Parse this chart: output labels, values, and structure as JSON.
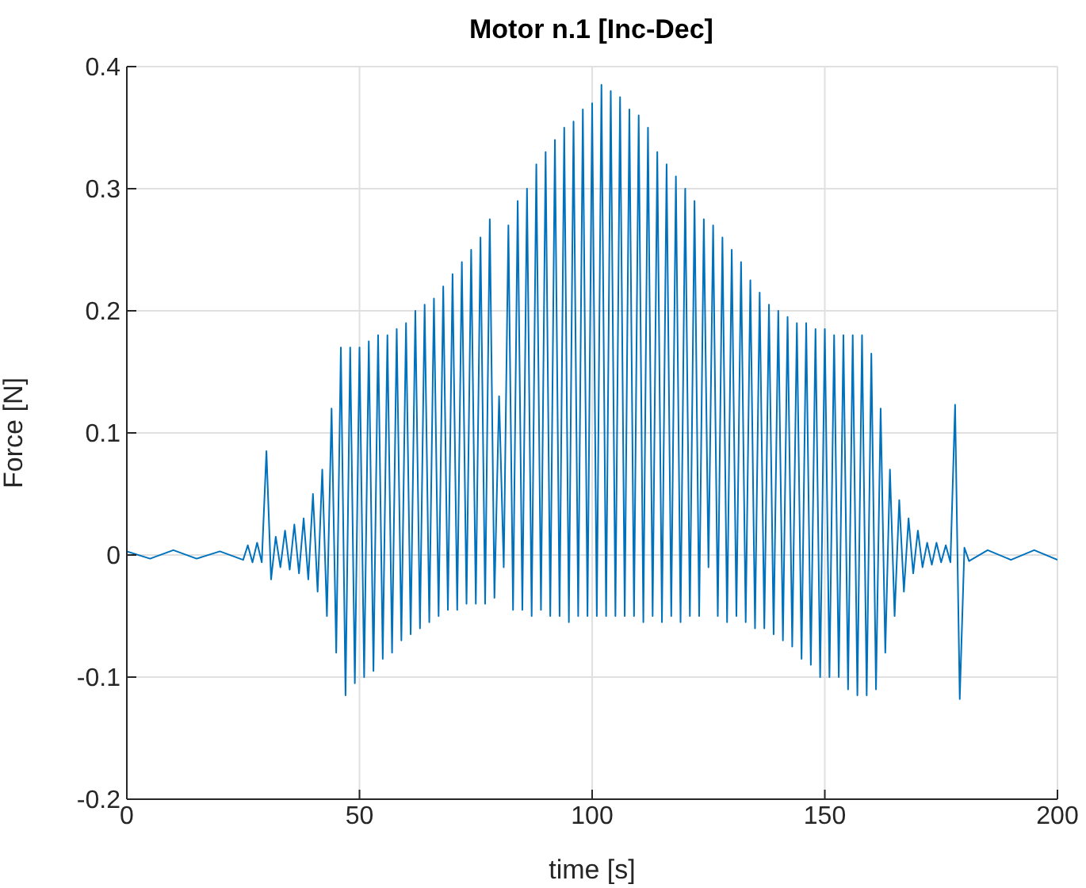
{
  "chart_data": {
    "type": "line",
    "title": "Motor n.1 [Inc-Dec]",
    "xlabel": "time [s]",
    "ylabel": "Force [N]",
    "xlim": [
      0,
      200
    ],
    "xticks": [
      0,
      50,
      100,
      150,
      200
    ],
    "ylim": [
      -0.2,
      0.4
    ],
    "yticks": [
      -0.2,
      -0.1,
      0,
      0.1,
      0.2,
      0.3,
      0.4
    ],
    "grid": true,
    "marker": "none",
    "line_style": "solid",
    "series": [
      {
        "color": "#0072bd",
        "x": [
          0,
          5,
          10,
          15,
          20,
          25,
          26,
          27,
          28,
          29,
          30,
          31,
          32,
          33,
          34,
          35,
          36,
          37,
          38,
          39,
          40,
          41,
          42,
          43,
          44,
          45,
          46,
          47,
          48,
          49,
          50,
          51,
          52,
          53,
          54,
          55,
          56,
          57,
          58,
          59,
          60,
          61,
          62,
          63,
          64,
          65,
          66,
          67,
          68,
          69,
          70,
          71,
          72,
          73,
          74,
          75,
          76,
          77,
          78,
          79,
          80,
          81,
          82,
          83,
          84,
          85,
          86,
          87,
          88,
          89,
          90,
          91,
          92,
          93,
          94,
          95,
          96,
          97,
          98,
          99,
          100,
          101,
          102,
          103,
          104,
          105,
          106,
          107,
          108,
          109,
          110,
          111,
          112,
          113,
          114,
          115,
          116,
          117,
          118,
          119,
          120,
          121,
          122,
          123,
          124,
          125,
          126,
          127,
          128,
          129,
          130,
          131,
          132,
          133,
          134,
          135,
          136,
          137,
          138,
          139,
          140,
          141,
          142,
          143,
          144,
          145,
          146,
          147,
          148,
          149,
          150,
          151,
          152,
          153,
          154,
          155,
          156,
          157,
          158,
          159,
          160,
          161,
          162,
          163,
          164,
          165,
          166,
          167,
          168,
          169,
          170,
          171,
          172,
          173,
          174,
          175,
          176,
          177,
          178,
          179,
          180,
          181,
          185,
          190,
          195,
          200
        ],
        "values": [
          0.003,
          -0.003,
          0.004,
          -0.003,
          0.003,
          -0.004,
          0.008,
          -0.006,
          0.01,
          -0.006,
          0.085,
          -0.02,
          0.015,
          -0.01,
          0.02,
          -0.012,
          0.025,
          -0.015,
          0.03,
          -0.02,
          0.05,
          -0.03,
          0.07,
          -0.05,
          0.12,
          -0.08,
          0.17,
          -0.115,
          0.17,
          -0.105,
          0.17,
          -0.1,
          0.175,
          -0.095,
          0.18,
          -0.085,
          0.18,
          -0.08,
          0.185,
          -0.07,
          0.19,
          -0.065,
          0.2,
          -0.06,
          0.205,
          -0.055,
          0.21,
          -0.05,
          0.22,
          -0.045,
          0.23,
          -0.045,
          0.24,
          -0.04,
          0.25,
          -0.04,
          0.26,
          -0.04,
          0.275,
          -0.035,
          0.13,
          -0.01,
          0.27,
          -0.045,
          0.29,
          -0.045,
          0.3,
          -0.05,
          0.32,
          -0.045,
          0.33,
          -0.05,
          0.34,
          -0.05,
          0.35,
          -0.055,
          0.355,
          -0.05,
          0.365,
          -0.05,
          0.37,
          -0.05,
          0.385,
          -0.05,
          0.38,
          -0.05,
          0.375,
          -0.05,
          0.365,
          -0.05,
          0.36,
          -0.055,
          0.35,
          -0.05,
          0.33,
          -0.055,
          0.32,
          -0.05,
          0.31,
          -0.055,
          0.3,
          -0.05,
          0.29,
          -0.05,
          0.275,
          -0.01,
          0.27,
          -0.05,
          0.26,
          -0.055,
          0.25,
          -0.05,
          0.24,
          -0.055,
          0.225,
          -0.06,
          0.215,
          -0.06,
          0.205,
          -0.065,
          0.2,
          -0.07,
          0.195,
          -0.075,
          0.19,
          -0.085,
          0.19,
          -0.09,
          0.185,
          -0.1,
          0.185,
          -0.1,
          0.18,
          -0.1,
          0.18,
          -0.11,
          0.18,
          -0.115,
          0.18,
          -0.115,
          0.165,
          -0.11,
          0.12,
          -0.08,
          0.07,
          -0.05,
          0.045,
          -0.03,
          0.03,
          -0.015,
          0.02,
          -0.01,
          0.01,
          -0.008,
          0.01,
          -0.006,
          0.008,
          -0.006,
          0.123,
          -0.118,
          0.006,
          -0.005,
          0.004,
          -0.004,
          0.004,
          -0.004
        ]
      }
    ]
  }
}
